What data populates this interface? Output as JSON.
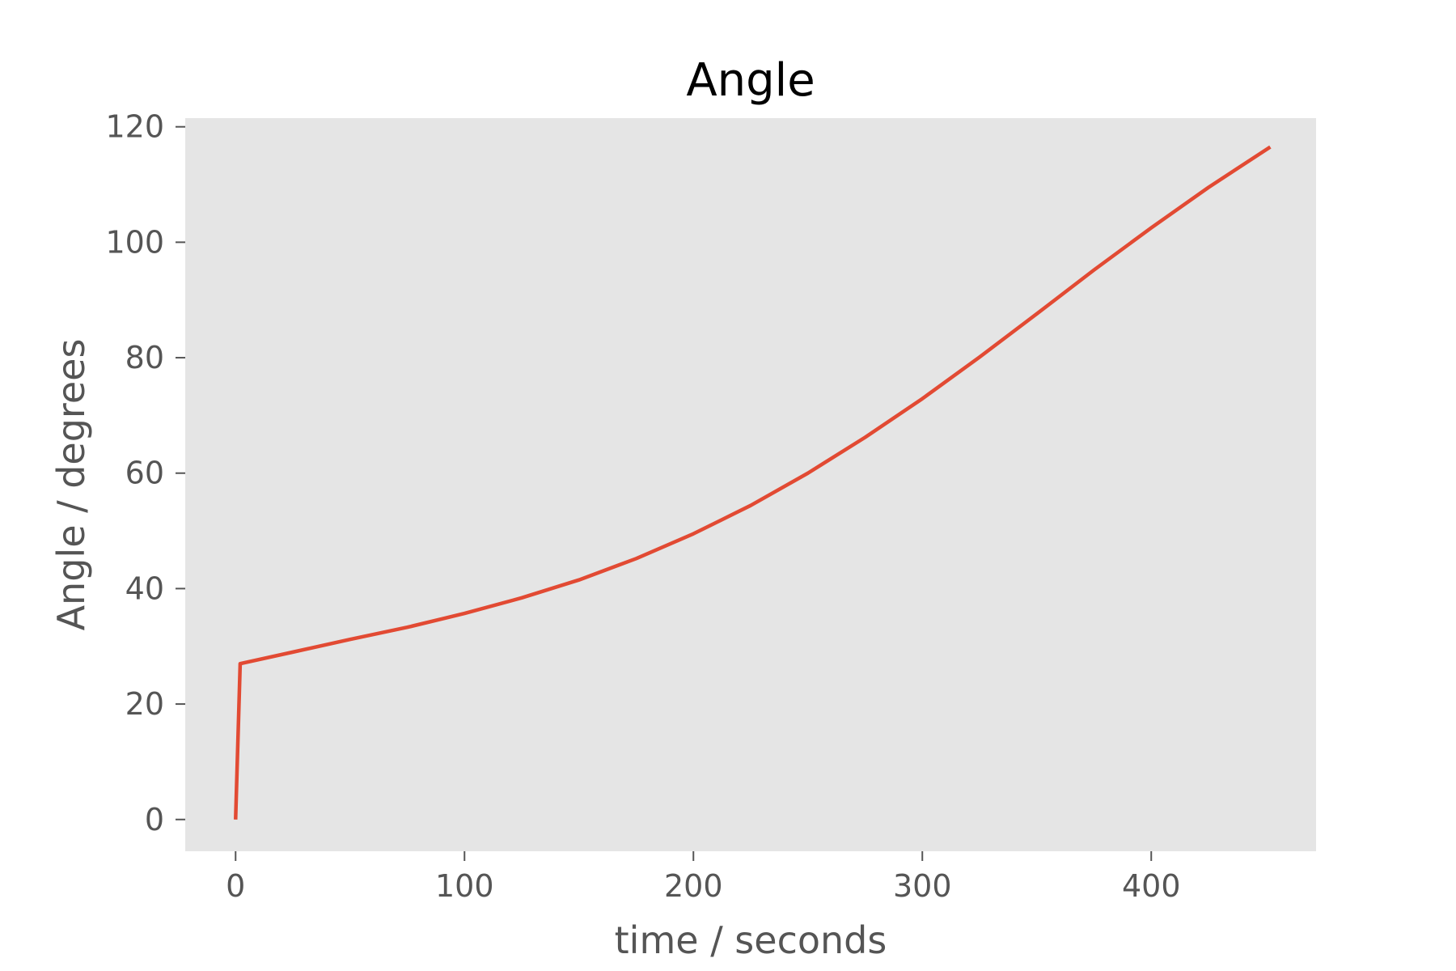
{
  "chart_data": {
    "type": "line",
    "title": "Angle",
    "xlabel": "time / seconds",
    "ylabel": "Angle / degrees",
    "xlim": [
      -22,
      472
    ],
    "ylim": [
      -5.5,
      121.5
    ],
    "xticks": [
      0,
      100,
      200,
      300,
      400
    ],
    "yticks": [
      0,
      20,
      40,
      60,
      80,
      100,
      120
    ],
    "grid": false,
    "background_color": "#e5e5e5",
    "series": [
      {
        "color": "#e24a33",
        "x": [
          0,
          2,
          25,
          50,
          75,
          100,
          125,
          150,
          175,
          200,
          225,
          250,
          275,
          300,
          325,
          350,
          375,
          400,
          425,
          452
        ],
        "y": [
          0,
          27,
          29,
          31.2,
          33.3,
          35.7,
          38.4,
          41.5,
          45.2,
          49.5,
          54.4,
          60,
          66.2,
          72.9,
          80.1,
          87.6,
          95.2,
          102.5,
          109.5,
          116.5
        ]
      }
    ]
  }
}
